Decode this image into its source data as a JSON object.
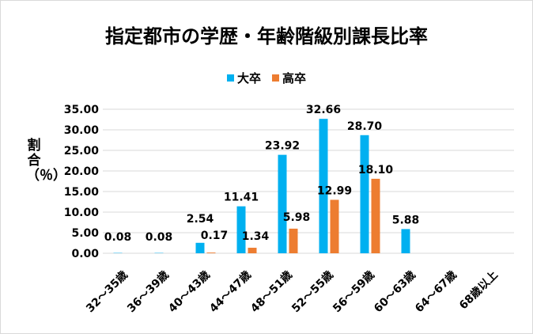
{
  "chart_data": {
    "type": "bar",
    "title": "指定都市の学歴・年齢階級別課長比率",
    "xlabel": "",
    "ylabel": "割合（％）",
    "ylim": [
      0,
      35
    ],
    "yticks": [
      "0.00",
      "5.00",
      "10.00",
      "15.00",
      "20.00",
      "25.00",
      "30.00",
      "35.00"
    ],
    "grid": true,
    "legend_position": "top",
    "categories": [
      "32～35歳",
      "36～39歳",
      "40～43歳",
      "44～47歳",
      "48～51歳",
      "52～55歳",
      "56～59歳",
      "60～63歳",
      "64～67歳",
      "68歳以上"
    ],
    "series": [
      {
        "name": "大卒",
        "color": "#00b0f0",
        "values": [
          0.08,
          0.08,
          2.54,
          11.41,
          23.92,
          32.66,
          28.7,
          5.88,
          null,
          null
        ],
        "labels": [
          "0.08",
          "0.08",
          "2.54",
          "11.41",
          "23.92",
          "32.66",
          "28.70",
          "5.88",
          "",
          ""
        ]
      },
      {
        "name": "高卒",
        "color": "#ed7d31",
        "values": [
          null,
          null,
          0.17,
          1.34,
          5.98,
          12.99,
          18.1,
          null,
          null,
          null
        ],
        "labels": [
          "",
          "",
          "0.17",
          "1.34",
          "5.98",
          "12.99",
          "18.10",
          "",
          "",
          ""
        ]
      }
    ]
  }
}
